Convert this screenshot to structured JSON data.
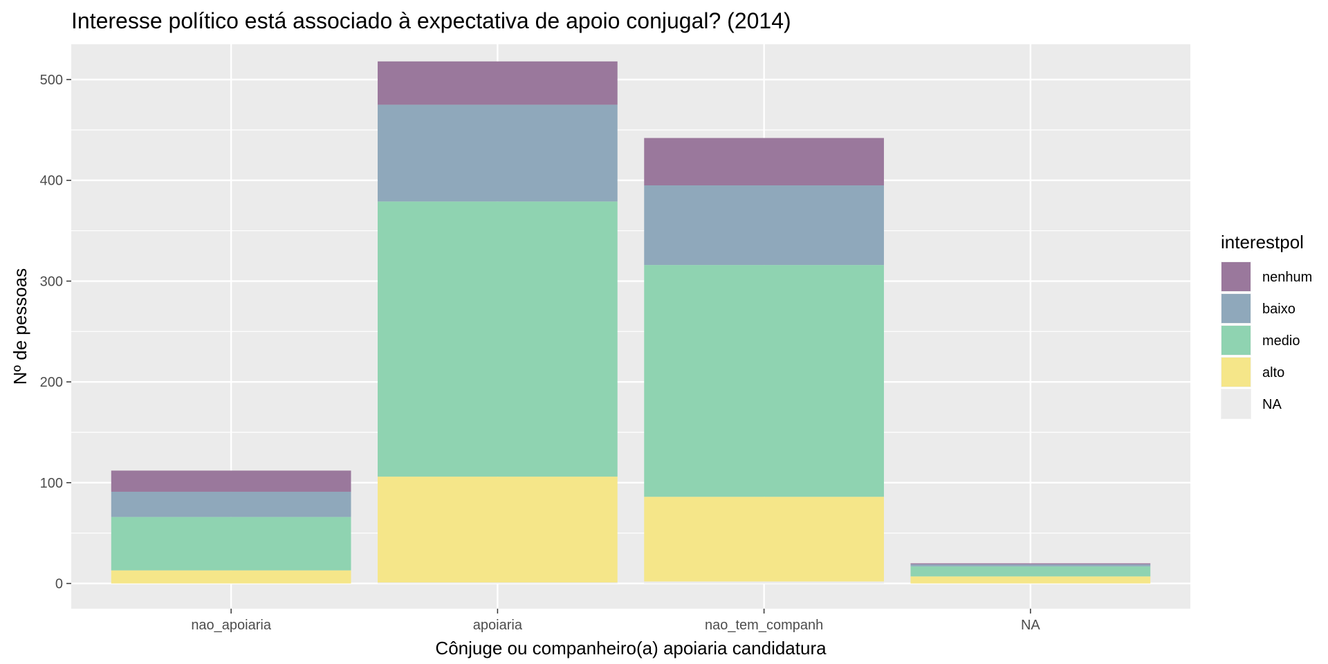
{
  "chart_data": {
    "type": "bar",
    "stacked": true,
    "title": "Interesse político está associado à expectativa de apoio conjugal? (2014)",
    "xlabel": "Cônjuge ou companheiro(a) apoiaria candidatura",
    "ylabel": "Nº de pessoas",
    "categories": [
      "nao_apoiaria",
      "apoiaria",
      "nao_tem_companh",
      "NA"
    ],
    "ylim": [
      -25,
      535
    ],
    "yticks": [
      0,
      100,
      200,
      300,
      400,
      500
    ],
    "grid": true,
    "legend": {
      "title": "interestpol",
      "position": "right",
      "entries": [
        "nenhum",
        "baixo",
        "medio",
        "alto",
        "NA"
      ]
    },
    "series": [
      {
        "name": "NA",
        "color": "#ebebeb",
        "values": [
          0,
          1,
          2,
          0
        ]
      },
      {
        "name": "alto",
        "color": "#f5e689",
        "values": [
          13,
          105,
          84,
          7
        ]
      },
      {
        "name": "medio",
        "color": "#8fd3b1",
        "values": [
          53,
          273,
          230,
          10
        ]
      },
      {
        "name": "baixo",
        "color": "#8fa8bb",
        "values": [
          25,
          96,
          79,
          2
        ]
      },
      {
        "name": "nenhum",
        "color": "#9a789c",
        "values": [
          21,
          43,
          47,
          1
        ]
      }
    ]
  }
}
